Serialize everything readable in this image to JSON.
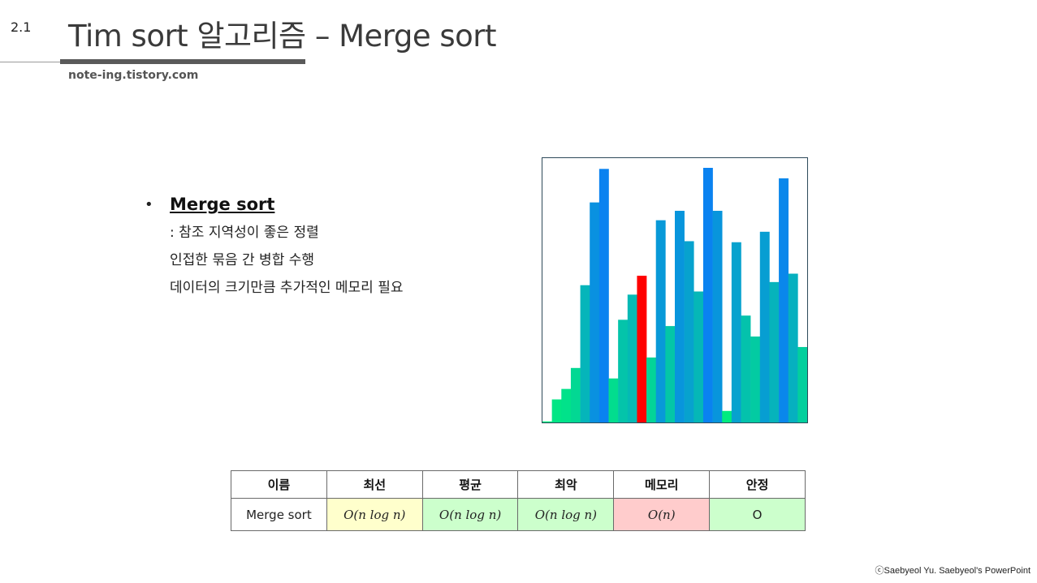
{
  "slide_number": "2.1",
  "title": "Tim sort 알고리즘 – Merge sort",
  "site": "note-ing.tistory.com",
  "bullet": {
    "marker": "•",
    "heading": "Merge sort",
    "lines": [
      ": 참조 지역성이 좋은 정렬",
      "인접한 묶음 간 병합 수행",
      "데이터의 크기만큼 추가적인 메모리 필요"
    ]
  },
  "chart_data": {
    "type": "bar",
    "values": [
      1,
      22,
      32,
      52,
      131,
      210,
      242,
      42,
      98,
      122,
      140,
      62,
      193,
      92,
      202,
      173,
      125,
      243,
      202,
      11,
      172,
      102,
      82,
      182,
      134,
      233,
      142,
      72
    ],
    "highlight_index": 10,
    "colors": {
      "low": "#00f07a",
      "high": "#0a82f0",
      "highlight": "#ff0000"
    }
  },
  "table": {
    "headers": [
      "이름",
      "최선",
      "평균",
      "최악",
      "메모리",
      "안정"
    ],
    "row": [
      "Merge sort",
      "O(n log n)",
      "O(n log n)",
      "O(n log n)",
      "O(n)",
      "O"
    ],
    "cell_colors": [
      "#ffffff",
      "#ffffcc",
      "#ccffcc",
      "#ccffcc",
      "#ffcccc",
      "#ccffcc"
    ]
  },
  "footer": "ⓒSaebyeol Yu. Saebyeol's PowerPoint"
}
